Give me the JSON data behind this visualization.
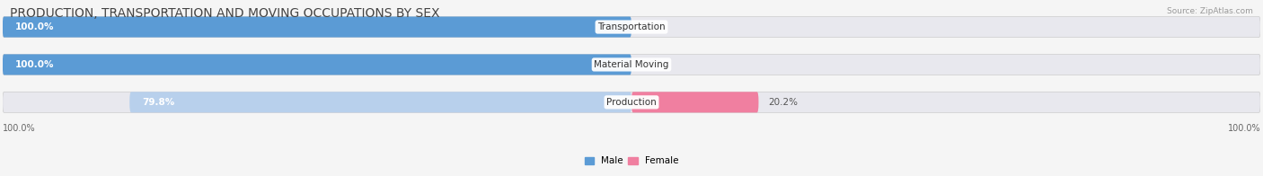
{
  "title": "PRODUCTION, TRANSPORTATION AND MOVING OCCUPATIONS BY SEX",
  "source": "Source: ZipAtlas.com",
  "categories": [
    "Transportation",
    "Material Moving",
    "Production"
  ],
  "male_values": [
    100.0,
    100.0,
    79.8
  ],
  "female_values": [
    0.0,
    0.0,
    20.2
  ],
  "male_color_dark": "#5b9bd5",
  "male_color_light": "#b8d0ec",
  "female_color_dark": "#f07fa0",
  "female_color_light": "#f9c0cf",
  "bar_bg_color": "#e8e8ee",
  "title_fontsize": 10,
  "label_fontsize": 7.5,
  "tick_fontsize": 7,
  "x_left_label": "100.0%",
  "x_right_label": "100.0%"
}
